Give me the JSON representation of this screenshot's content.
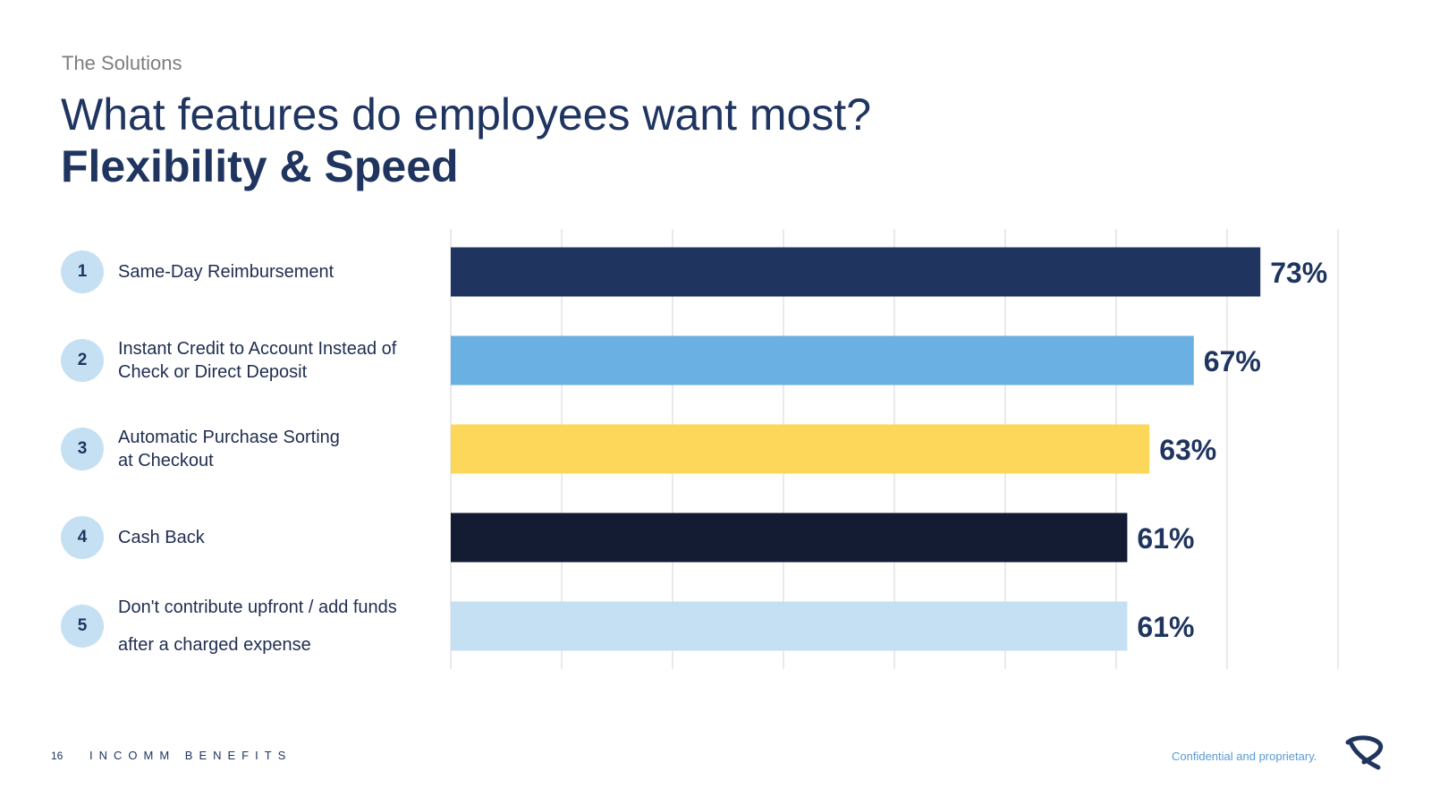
{
  "header": {
    "eyebrow": "The Solutions",
    "title": "What features do employees want most?",
    "subtitle": "Flexibility & Speed"
  },
  "chart_data": {
    "type": "bar",
    "orientation": "horizontal",
    "categories": [
      "Same-Day Reimbursement",
      "Instant Credit to Account Instead of Check or Direct Deposit",
      "Automatic Purchase Sorting at Checkout",
      "Cash Back",
      "Don't contribute upfront / add funds after a charged expense"
    ],
    "rank_labels": [
      "1",
      "2",
      "3",
      "4",
      "5"
    ],
    "label_lines": [
      [
        "Same-Day Reimbursement"
      ],
      [
        "Instant Credit to Account Instead of",
        "Check or Direct Deposit"
      ],
      [
        "Automatic Purchase Sorting",
        "at Checkout"
      ],
      [
        "Cash Back"
      ],
      [
        "Don't contribute upfront / add funds",
        "after a charged expense"
      ]
    ],
    "values": [
      73,
      67,
      63,
      61,
      61
    ],
    "data_labels": [
      "73%",
      "67%",
      "63%",
      "61%",
      "61%"
    ],
    "colors": [
      "#1f3560",
      "#6ab0e2",
      "#fdd75a",
      "#131c33",
      "#c5e0f3"
    ],
    "xlim": [
      0,
      80
    ],
    "grid": true,
    "unit": "%"
  },
  "footer": {
    "page_number": "16",
    "brand": "INCOMM BENEFITS",
    "confidential": "Confidential and proprietary."
  }
}
